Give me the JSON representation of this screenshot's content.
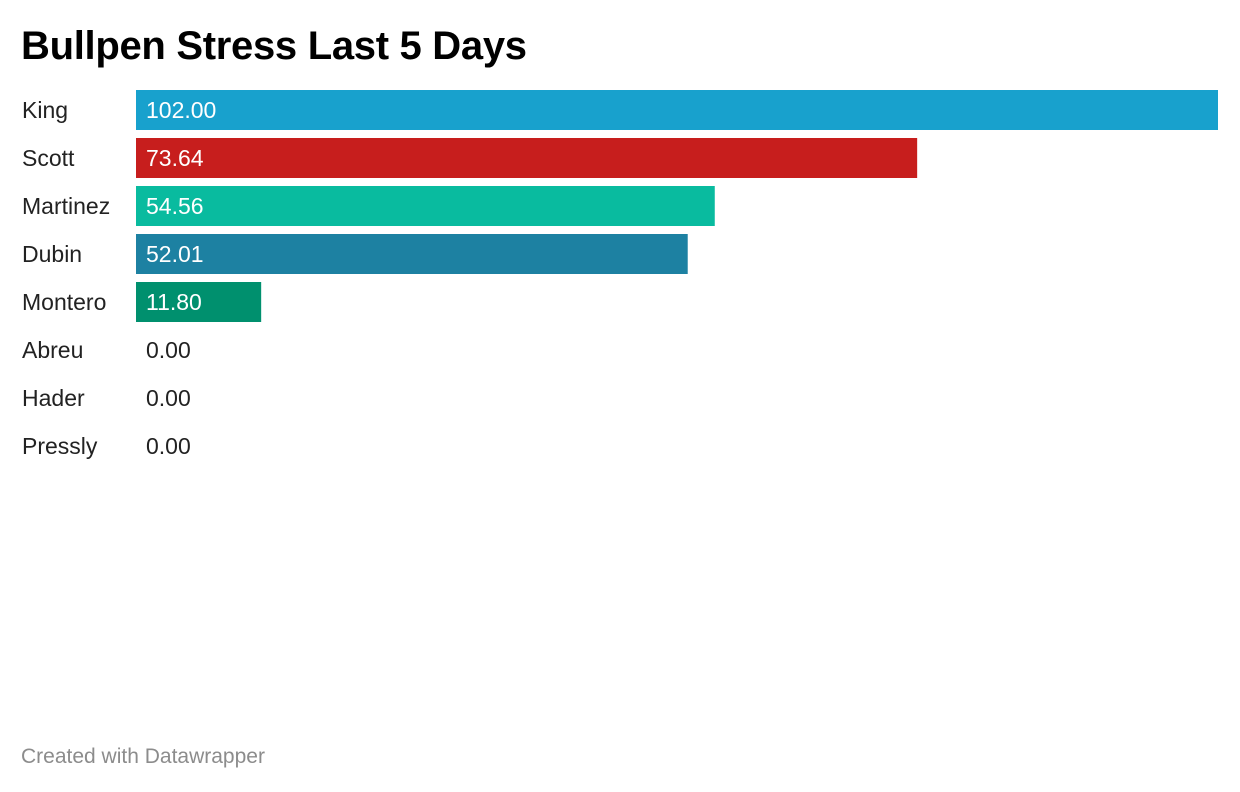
{
  "title": "Bullpen Stress Last 5 Days",
  "footer": "Created with Datawrapper",
  "chart_data": {
    "type": "bar",
    "orientation": "horizontal",
    "title": "Bullpen Stress Last 5 Days",
    "categories": [
      "King",
      "Scott",
      "Martinez",
      "Dubin",
      "Montero",
      "Abreu",
      "Hader",
      "Pressly"
    ],
    "values": [
      102.0,
      73.64,
      54.56,
      52.01,
      11.8,
      0.0,
      0.0,
      0.0
    ],
    "value_labels": [
      "102.00",
      "73.64",
      "54.56",
      "52.01",
      "11.80",
      "0.00",
      "0.00",
      "0.00"
    ],
    "colors": [
      "#18a1cd",
      "#c71e1d",
      "#09bb9f",
      "#1d81a2",
      "#00906e",
      "#18a1cd",
      "#c71e1d",
      "#09bb9f"
    ],
    "xlim": [
      0,
      102
    ],
    "grid": false,
    "legend": "none"
  }
}
